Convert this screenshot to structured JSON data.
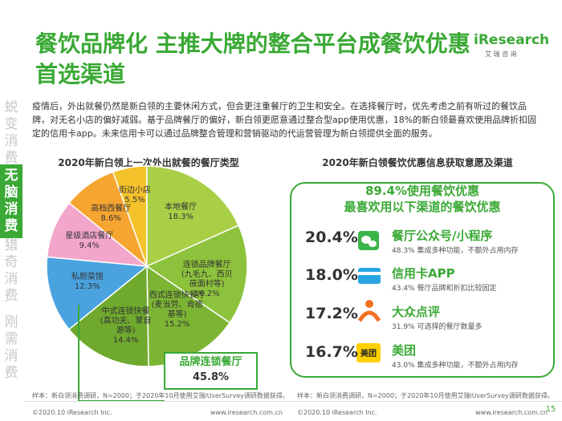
{
  "logo": {
    "brand": "iResearch",
    "sub": "艾 瑞 咨 询"
  },
  "nav": [
    "蜕变消费",
    "无脑消费",
    "猎奇消费",
    "刚需消费"
  ],
  "title": "餐饮品牌化 主推大牌的整合平台成餐饮优惠首选渠道",
  "intro": "疫情后，外出就餐仍然是新白领的主要休闲方式，但会更注重餐厅的卫生和安全。在选择餐厅时，优先考虑之前有听过的餐饮品牌，对无名小店的偏好减弱。基于品牌餐厅的偏好，新白领更愿意通过整合型app使用优惠，18%的新白领最喜欢使用品牌折扣固定的信用卡app。未来信用卡可以通过品牌整合管理和营销驱动的代运营管理为新白领提供全面的服务。",
  "chart_data": {
    "type": "pie",
    "title": "2020年新白领上一次外出就餐的餐厅类型",
    "categories": [
      "街边小店",
      "本地餐厅",
      "连锁品牌餐厅(九毛九、西贝莜面村等)",
      "西式连锁快餐厅(麦当劳、肯德基等)",
      "中式连锁快餐(真功夫、蒙自源等)",
      "私厨菜馆",
      "星级酒店餐厅",
      "高档西餐厅"
    ],
    "values": [
      5.5,
      18.3,
      16.2,
      15.2,
      14.4,
      12.3,
      9.4,
      8.6
    ],
    "value_labels": [
      "5.5%",
      "18.3%",
      "16.2%",
      "15.2%",
      "14.4%",
      "12.3%",
      "9.4%",
      "8.6%"
    ],
    "colors": [
      "#f4c22b",
      "#a9cf46",
      "#8dc23c",
      "#7cb534",
      "#6fa92e",
      "#4aa3df",
      "#f3a6cc",
      "#f6a531"
    ],
    "callout": {
      "label": "品牌连锁餐厅",
      "value": "45.8%"
    },
    "source": "样本：新白领消费调研，N=2000；于2020年10月使用艾瑞iUserSurvey调研数据获得。"
  },
  "channels": {
    "title": "2020年新白领餐饮优惠信息获取意愿及渠道",
    "headline": "89.4%使用餐饮优惠",
    "subhead": "最喜欢用以下渠道的餐饮优惠",
    "items": [
      {
        "share": "20.4%",
        "name": "餐厅公众号/小程序",
        "desc": "48.3% 集成多种功能，不额外占用内存"
      },
      {
        "share": "18.0%",
        "name": "信用卡APP",
        "desc": "43.4% 餐厅品牌和折扣比较固定"
      },
      {
        "share": "17.2%",
        "name": "大众点评",
        "desc": "31.9% 可选择的餐厅数量多"
      },
      {
        "share": "16.7%",
        "name": "美团",
        "icon": "美团",
        "desc": "43.0% 集成多种功能，不额外占用内存"
      }
    ],
    "source": "样本：新白领消费调研，N=2000；于2020年10月使用艾瑞iUserSurvey调研数据获得。"
  },
  "footer": {
    "copyright": "©2020.10 iResearch Inc.",
    "site": "www.iresearch.com.cn",
    "page": "15"
  }
}
